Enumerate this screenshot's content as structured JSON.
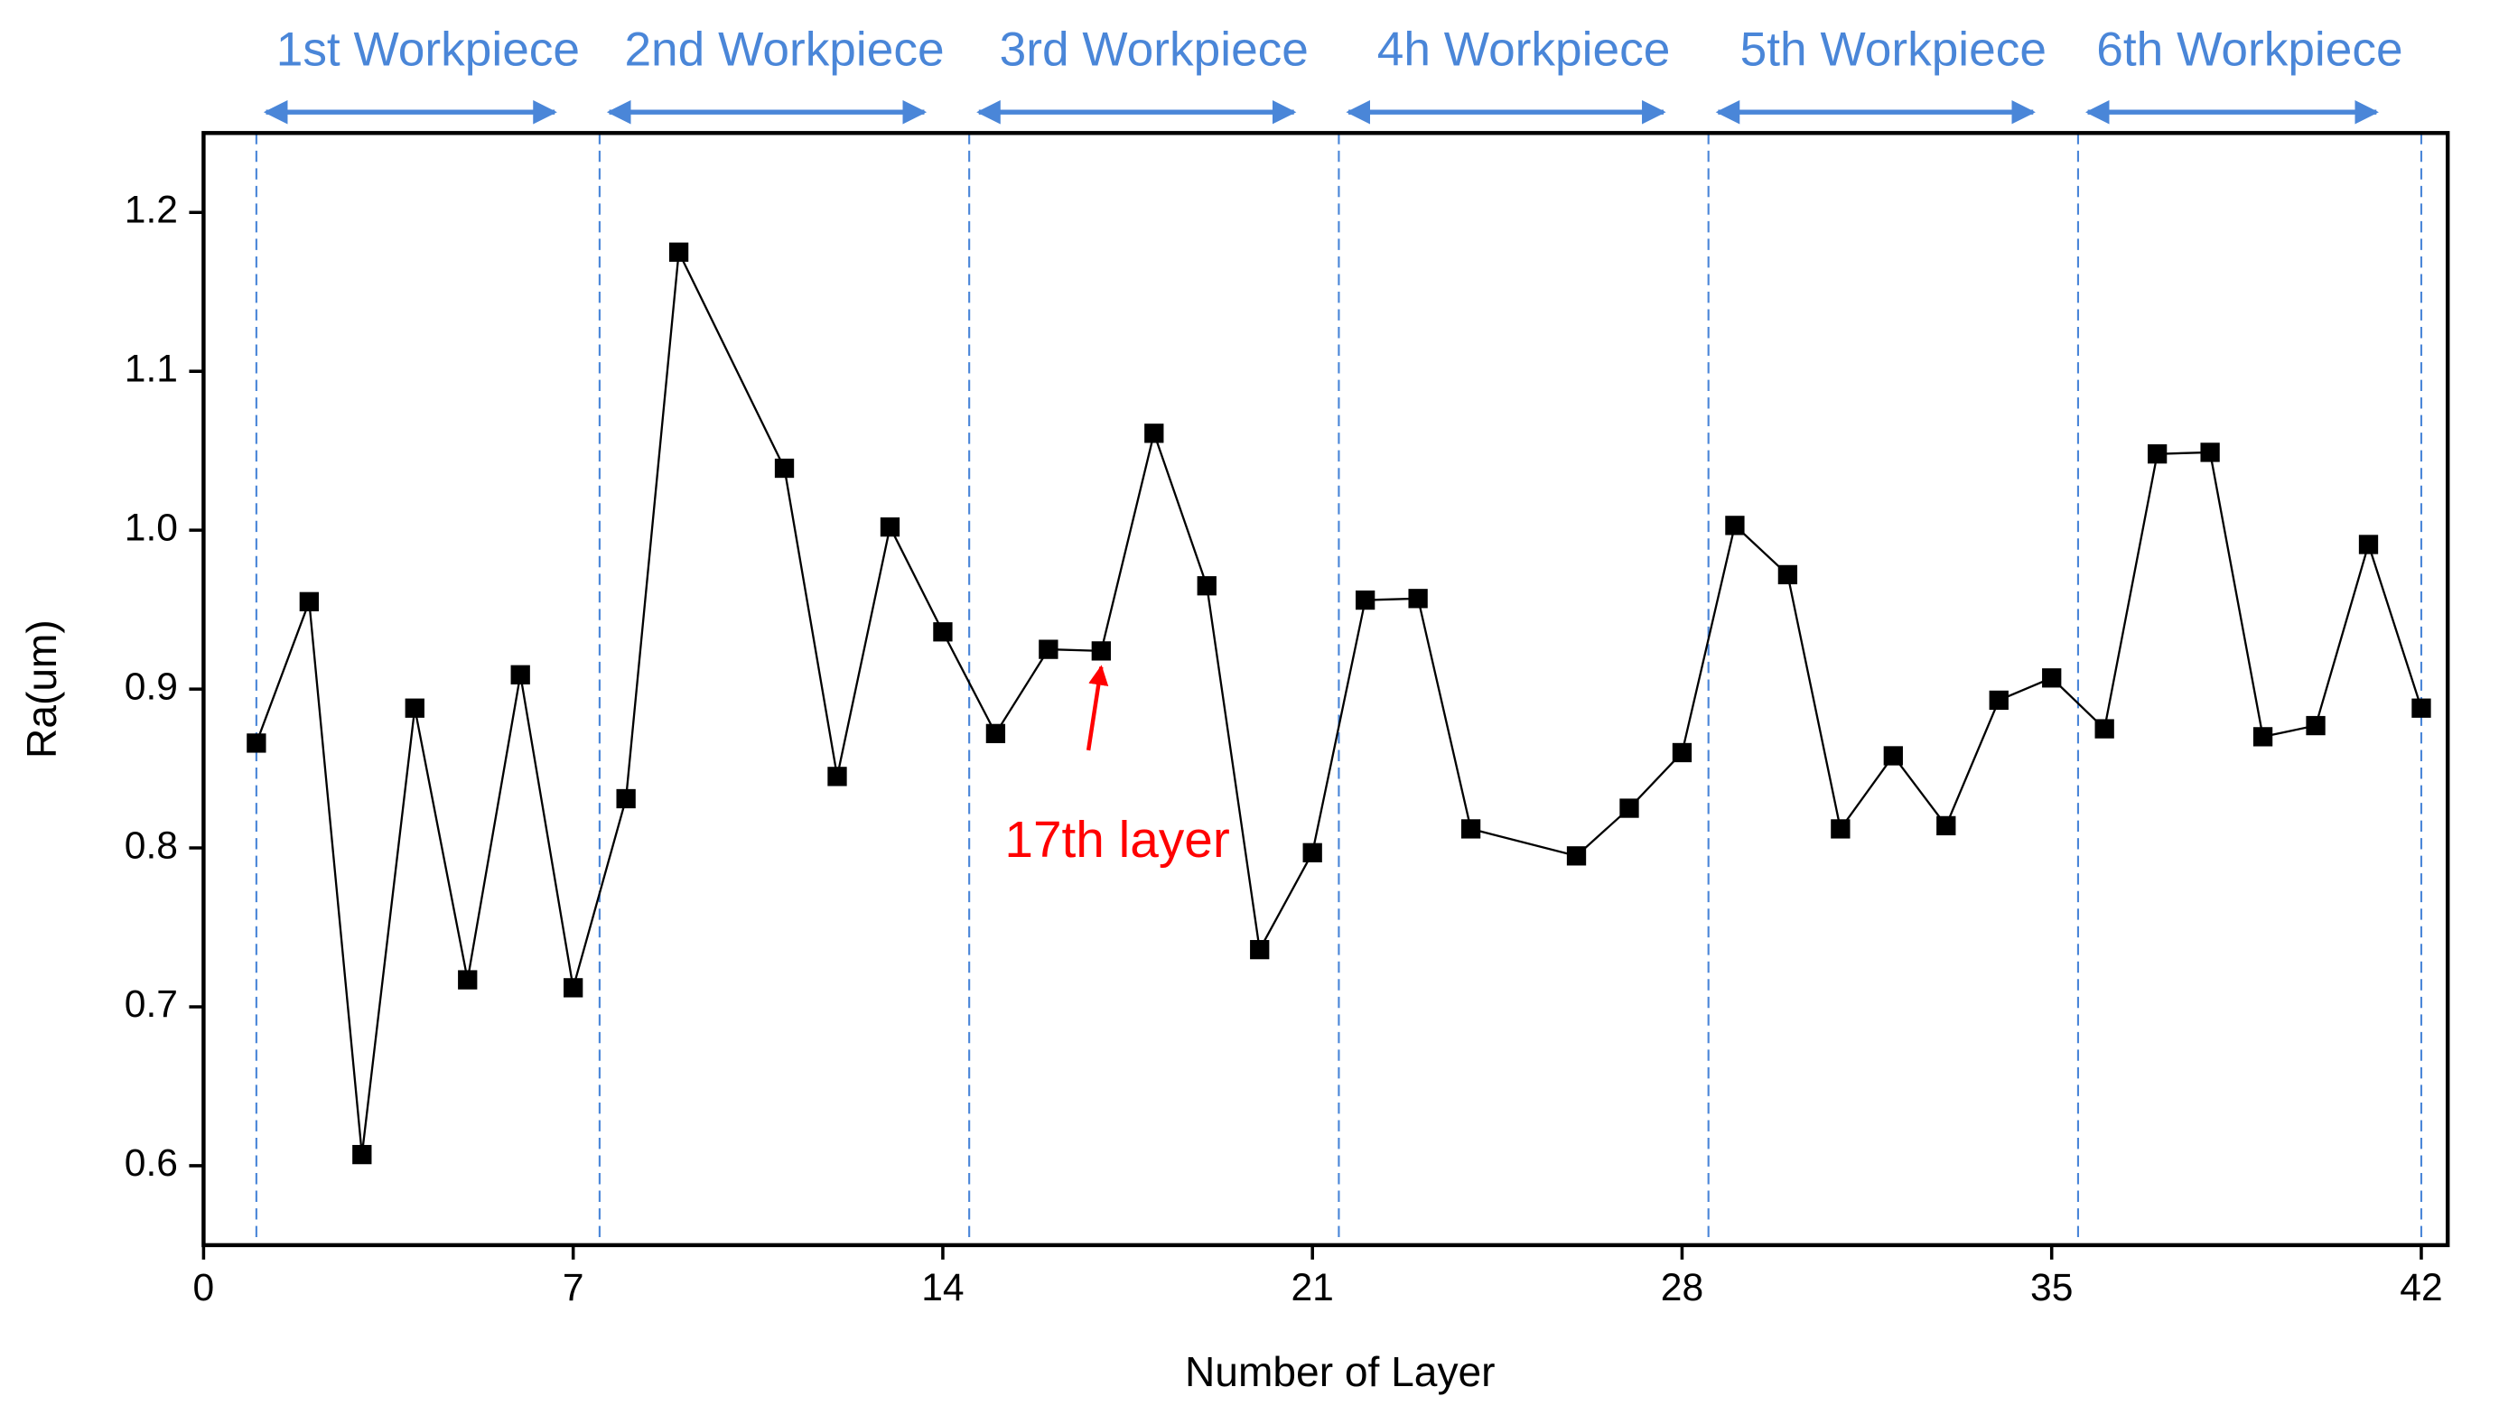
{
  "chart_data": {
    "type": "line",
    "xlabel": "Number of Layer",
    "ylabel": "Ra(um)",
    "x": [
      1,
      2,
      3,
      4,
      5,
      6,
      7,
      8,
      9,
      11,
      12,
      13,
      14,
      15,
      16,
      17,
      18,
      19,
      20,
      21,
      22,
      23,
      24,
      26,
      27,
      28,
      29,
      30,
      31,
      32,
      33,
      34,
      35,
      36,
      37,
      38,
      39,
      40,
      41,
      42
    ],
    "series": [
      {
        "color": "#000000",
        "values": [
          0.866,
          0.955,
          0.607,
          0.888,
          0.717,
          0.909,
          0.712,
          0.831,
          1.175,
          1.039,
          0.845,
          1.002,
          0.936,
          0.872,
          0.925,
          0.924,
          1.061,
          0.965,
          0.736,
          0.797,
          0.956,
          0.957,
          0.812,
          0.795,
          0.825,
          0.86,
          1.003,
          0.972,
          0.812,
          0.858,
          0.814,
          0.893,
          0.907,
          0.875,
          1.048,
          1.049,
          0.87,
          0.877,
          0.991,
          0.888
        ]
      }
    ],
    "xlim": [
      0,
      42.5
    ],
    "xticks": [
      0,
      7,
      14,
      21,
      28,
      35,
      42
    ],
    "ylim": [
      0.55,
      1.25
    ],
    "yticks": [
      {
        "value": 0.6,
        "label": "0.6"
      },
      {
        "value": 0.7,
        "label": "0.7"
      },
      {
        "value": 0.8,
        "label": "0.8"
      },
      {
        "value": 0.9,
        "label": "0.9"
      },
      {
        "value": 1.0,
        "label": "1.0"
      },
      {
        "value": 1.1,
        "label": "1.1"
      },
      {
        "value": 1.2,
        "label": "1.2"
      }
    ],
    "workpiece_bounds": [
      1,
      7.5,
      14.5,
      21.5,
      28.5,
      35.5,
      42
    ],
    "workpieces": [
      "1st Workpiece",
      "2nd Workpiece",
      "3rd Workpiece",
      "4h Workpiece",
      "5th Workpiece",
      "6th Workpiece"
    ],
    "divider_color": "#4a86d8",
    "annotation": {
      "text": "17th layer",
      "x": 17,
      "color": "#ff0000"
    }
  }
}
